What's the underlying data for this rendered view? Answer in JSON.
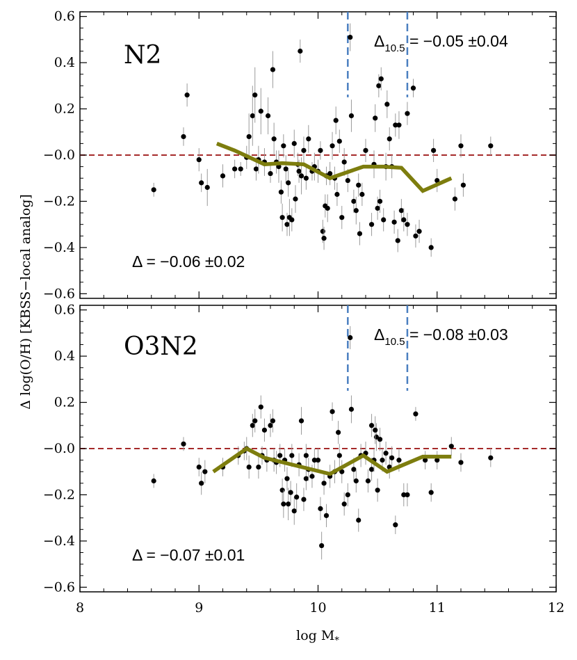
{
  "colors": {
    "frame": "#000000",
    "points": "#000000",
    "error_bars": "#9a9a9a",
    "zero_line": "#a52a2a",
    "mass_lines": "#4a7fc0",
    "median_line": "#7d7d0e"
  },
  "chart_data": {
    "type": "scatter",
    "xlabel_main": "log M",
    "xlabel_sub": "*",
    "ylabel": "Δ log(O/H) [KBSS−local analog]",
    "xlim": [
      8,
      12
    ],
    "xticks": [
      "8",
      "9",
      "10",
      "11",
      "12"
    ],
    "yticks": [
      "−0.6",
      "−0.4",
      "−0.2",
      "−0.0",
      "0.2",
      "0.4",
      "0.6"
    ],
    "shared_x": true,
    "panels": [
      {
        "label": "N2",
        "ylim": [
          -0.62,
          0.62
        ],
        "zero_line": 0,
        "mass_lines": [
          10.25,
          10.75
        ],
        "delta_text": "Δ = −0.06 ±0.02",
        "delta105_symbol": "Δ",
        "delta105_sub": "10.5",
        "delta105_value": " = −0.05 ±0.04",
        "median": [
          [
            9.15,
            0.05
          ],
          [
            9.3,
            0.02
          ],
          [
            9.55,
            -0.04
          ],
          [
            9.7,
            -0.035
          ],
          [
            9.88,
            -0.04
          ],
          [
            10.1,
            -0.1
          ],
          [
            10.38,
            -0.05
          ],
          [
            10.55,
            -0.05
          ],
          [
            10.7,
            -0.055
          ],
          [
            10.88,
            -0.155
          ],
          [
            11.12,
            -0.1
          ]
        ],
        "points": [
          [
            8.62,
            -0.15,
            0.03
          ],
          [
            8.87,
            0.08,
            0.04
          ],
          [
            8.9,
            0.26,
            0.05
          ],
          [
            9.0,
            -0.02,
            0.05
          ],
          [
            9.02,
            -0.12,
            0.04
          ],
          [
            9.07,
            -0.14,
            0.08
          ],
          [
            9.2,
            -0.09,
            0.05
          ],
          [
            9.3,
            -0.06,
            0.04
          ],
          [
            9.35,
            -0.06,
            0.03
          ],
          [
            9.4,
            -0.01,
            0.05
          ],
          [
            9.42,
            0.08,
            0.1
          ],
          [
            9.45,
            0.17,
            0.13
          ],
          [
            9.47,
            0.26,
            0.12
          ],
          [
            9.48,
            -0.06,
            0.05
          ],
          [
            9.5,
            -0.02,
            0.06
          ],
          [
            9.52,
            0.19,
            0.1
          ],
          [
            9.55,
            -0.03,
            0.06
          ],
          [
            9.58,
            0.17,
            0.08
          ],
          [
            9.6,
            -0.08,
            0.04
          ],
          [
            9.62,
            0.37,
            0.08
          ],
          [
            9.63,
            0.07,
            0.07
          ],
          [
            9.65,
            -0.03,
            0.05
          ],
          [
            9.67,
            -0.05,
            0.07
          ],
          [
            9.69,
            -0.16,
            0.05
          ],
          [
            9.7,
            -0.27,
            0.06
          ],
          [
            9.71,
            0.04,
            0.05
          ],
          [
            9.73,
            -0.06,
            0.06
          ],
          [
            9.74,
            -0.3,
            0.05
          ],
          [
            9.75,
            -0.12,
            0.06
          ],
          [
            9.76,
            -0.27,
            0.08
          ],
          [
            9.78,
            -0.28,
            0.05
          ],
          [
            9.8,
            0.05,
            0.06
          ],
          [
            9.81,
            -0.19,
            0.06
          ],
          [
            9.83,
            -0.04,
            0.05
          ],
          [
            9.84,
            -0.07,
            0.05
          ],
          [
            9.85,
            0.45,
            0.05
          ],
          [
            9.86,
            -0.09,
            0.08
          ],
          [
            9.88,
            0.02,
            0.06
          ],
          [
            9.9,
            -0.1,
            0.05
          ],
          [
            9.92,
            0.07,
            0.06
          ],
          [
            9.95,
            -0.07,
            0.04
          ],
          [
            9.97,
            -0.05,
            0.06
          ],
          [
            10.0,
            -0.07,
            0.05
          ],
          [
            10.02,
            0.02,
            0.04
          ],
          [
            10.04,
            -0.33,
            0.05
          ],
          [
            10.05,
            -0.36,
            0.05
          ],
          [
            10.06,
            -0.22,
            0.05
          ],
          [
            10.07,
            -0.09,
            0.04
          ],
          [
            10.08,
            -0.23,
            0.06
          ],
          [
            10.1,
            -0.08,
            0.05
          ],
          [
            10.12,
            0.04,
            0.06
          ],
          [
            10.14,
            -0.1,
            0.05
          ],
          [
            10.15,
            0.15,
            0.06
          ],
          [
            10.16,
            -0.17,
            0.05
          ],
          [
            10.18,
            0.06,
            0.05
          ],
          [
            10.2,
            -0.27,
            0.05
          ],
          [
            10.22,
            -0.03,
            0.06
          ],
          [
            10.25,
            -0.11,
            0.05
          ],
          [
            10.27,
            0.51,
            0.06
          ],
          [
            10.28,
            0.17,
            0.07
          ],
          [
            10.3,
            -0.2,
            0.05
          ],
          [
            10.32,
            -0.24,
            0.06
          ],
          [
            10.34,
            -0.13,
            0.05
          ],
          [
            10.35,
            -0.34,
            0.05
          ],
          [
            10.37,
            -0.17,
            0.05
          ],
          [
            10.4,
            0.02,
            0.05
          ],
          [
            10.45,
            -0.3,
            0.05
          ],
          [
            10.47,
            -0.04,
            0.06
          ],
          [
            10.48,
            0.16,
            0.06
          ],
          [
            10.5,
            -0.23,
            0.05
          ],
          [
            10.51,
            0.3,
            0.05
          ],
          [
            10.52,
            -0.2,
            0.05
          ],
          [
            10.53,
            0.33,
            0.05
          ],
          [
            10.55,
            -0.28,
            0.05
          ],
          [
            10.57,
            -0.05,
            0.06
          ],
          [
            10.58,
            0.22,
            0.06
          ],
          [
            10.6,
            0.07,
            0.05
          ],
          [
            10.62,
            -0.05,
            0.05
          ],
          [
            10.64,
            -0.29,
            0.05
          ],
          [
            10.65,
            0.13,
            0.05
          ],
          [
            10.67,
            -0.37,
            0.05
          ],
          [
            10.68,
            0.13,
            0.06
          ],
          [
            10.7,
            -0.24,
            0.05
          ],
          [
            10.72,
            -0.28,
            0.05
          ],
          [
            10.75,
            -0.3,
            0.05
          ],
          [
            10.8,
            0.29,
            0.04
          ],
          [
            10.82,
            -0.35,
            0.05
          ],
          [
            10.85,
            -0.33,
            0.05
          ],
          [
            10.95,
            -0.4,
            0.04
          ],
          [
            11.0,
            -0.11,
            0.05
          ],
          [
            11.15,
            -0.19,
            0.05
          ],
          [
            11.2,
            0.04,
            0.05
          ],
          [
            11.22,
            -0.13,
            0.05
          ],
          [
            11.45,
            0.04,
            0.04
          ],
          [
            10.97,
            0.02,
            0.05
          ],
          [
            10.75,
            0.18,
            0.05
          ]
        ]
      },
      {
        "label": "O3N2",
        "ylim": [
          -0.62,
          0.62
        ],
        "zero_line": 0,
        "mass_lines": [
          10.25,
          10.75
        ],
        "delta_text": "Δ = −0.07 ±0.01",
        "delta105_symbol": "Δ",
        "delta105_sub": "10.5",
        "delta105_value": " = −0.08 ±0.03",
        "median": [
          [
            9.12,
            -0.1
          ],
          [
            9.4,
            0.0
          ],
          [
            9.55,
            -0.04
          ],
          [
            10.1,
            -0.11
          ],
          [
            10.38,
            -0.03
          ],
          [
            10.58,
            -0.1
          ],
          [
            10.88,
            -0.035
          ],
          [
            11.12,
            -0.035
          ]
        ],
        "points": [
          [
            8.62,
            -0.14,
            0.03
          ],
          [
            8.87,
            0.02,
            0.03
          ],
          [
            9.0,
            -0.08,
            0.04
          ],
          [
            9.02,
            -0.15,
            0.05
          ],
          [
            9.05,
            -0.1,
            0.05
          ],
          [
            9.2,
            -0.08,
            0.04
          ],
          [
            9.33,
            -0.03,
            0.04
          ],
          [
            9.38,
            -0.01,
            0.04
          ],
          [
            9.4,
            0.0,
            0.05
          ],
          [
            9.42,
            -0.08,
            0.05
          ],
          [
            9.45,
            0.1,
            0.05
          ],
          [
            9.47,
            0.12,
            0.05
          ],
          [
            9.5,
            -0.08,
            0.05
          ],
          [
            9.52,
            0.18,
            0.05
          ],
          [
            9.53,
            -0.03,
            0.04
          ],
          [
            9.55,
            0.08,
            0.05
          ],
          [
            9.57,
            -0.05,
            0.05
          ],
          [
            9.6,
            0.1,
            0.05
          ],
          [
            9.62,
            0.12,
            0.05
          ],
          [
            9.63,
            -0.05,
            0.05
          ],
          [
            9.65,
            -0.06,
            0.05
          ],
          [
            9.68,
            -0.03,
            0.05
          ],
          [
            9.7,
            -0.18,
            0.05
          ],
          [
            9.71,
            -0.24,
            0.06
          ],
          [
            9.72,
            -0.05,
            0.05
          ],
          [
            9.74,
            -0.13,
            0.05
          ],
          [
            9.75,
            -0.24,
            0.07
          ],
          [
            9.77,
            -0.19,
            0.05
          ],
          [
            9.78,
            -0.03,
            0.05
          ],
          [
            9.8,
            -0.27,
            0.06
          ],
          [
            9.82,
            -0.21,
            0.06
          ],
          [
            9.84,
            -0.07,
            0.05
          ],
          [
            9.86,
            0.12,
            0.06
          ],
          [
            9.88,
            -0.22,
            0.05
          ],
          [
            9.9,
            -0.13,
            0.05
          ],
          [
            9.92,
            -0.09,
            0.05
          ],
          [
            9.95,
            -0.12,
            0.05
          ],
          [
            9.97,
            -0.05,
            0.05
          ],
          [
            10.0,
            -0.05,
            0.05
          ],
          [
            10.02,
            -0.26,
            0.05
          ],
          [
            10.03,
            -0.42,
            0.06
          ],
          [
            10.05,
            -0.15,
            0.05
          ],
          [
            10.07,
            -0.29,
            0.05
          ],
          [
            10.1,
            -0.12,
            0.05
          ],
          [
            10.12,
            0.16,
            0.04
          ],
          [
            10.14,
            -0.1,
            0.05
          ],
          [
            10.17,
            0.07,
            0.05
          ],
          [
            10.18,
            -0.03,
            0.05
          ],
          [
            10.2,
            -0.1,
            0.05
          ],
          [
            10.22,
            -0.24,
            0.05
          ],
          [
            10.25,
            -0.2,
            0.05
          ],
          [
            10.27,
            0.48,
            0.05
          ],
          [
            10.28,
            0.17,
            0.06
          ],
          [
            10.3,
            -0.09,
            0.05
          ],
          [
            10.32,
            -0.14,
            0.05
          ],
          [
            10.34,
            -0.31,
            0.05
          ],
          [
            10.36,
            -0.03,
            0.05
          ],
          [
            10.4,
            -0.02,
            0.05
          ],
          [
            10.42,
            -0.14,
            0.05
          ],
          [
            10.45,
            -0.09,
            0.05
          ],
          [
            10.47,
            -0.05,
            0.05
          ],
          [
            10.49,
            0.05,
            0.06
          ],
          [
            10.5,
            -0.18,
            0.05
          ],
          [
            10.52,
            0.04,
            0.05
          ],
          [
            10.54,
            -0.05,
            0.05
          ],
          [
            10.57,
            -0.02,
            0.05
          ],
          [
            10.6,
            -0.08,
            0.05
          ],
          [
            10.62,
            -0.04,
            0.05
          ],
          [
            10.65,
            -0.33,
            0.04
          ],
          [
            10.68,
            -0.05,
            0.05
          ],
          [
            10.72,
            -0.2,
            0.05
          ],
          [
            10.75,
            -0.2,
            0.05
          ],
          [
            10.82,
            0.15,
            0.03
          ],
          [
            10.9,
            -0.05,
            0.04
          ],
          [
            10.95,
            -0.19,
            0.04
          ],
          [
            11.0,
            -0.05,
            0.04
          ],
          [
            11.12,
            0.01,
            0.04
          ],
          [
            11.2,
            -0.06,
            0.04
          ],
          [
            11.45,
            -0.04,
            0.04
          ],
          [
            10.45,
            0.1,
            0.05
          ],
          [
            10.48,
            0.08,
            0.06
          ],
          [
            9.9,
            -0.03,
            0.05
          ]
        ]
      }
    ]
  }
}
